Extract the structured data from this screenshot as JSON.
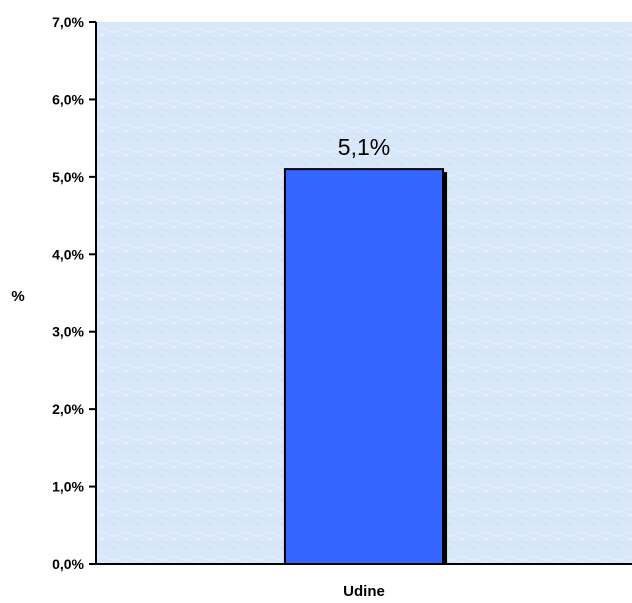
{
  "chart_data": {
    "type": "bar",
    "title": "",
    "xlabel": "",
    "ylabel": "%",
    "categories": [
      "Udine"
    ],
    "values": [
      5.1
    ],
    "data_labels": [
      "5,1%"
    ],
    "ylim": [
      0,
      7
    ],
    "yticks": [
      0,
      1,
      2,
      3,
      4,
      5,
      6,
      7
    ],
    "ytick_labels": [
      "0,0%",
      "1,0%",
      "2,0%",
      "3,0%",
      "4,0%",
      "5,0%",
      "6,0%",
      "7,0%"
    ],
    "grid": false,
    "legend": "none",
    "colors": {
      "bar": "#3366FF",
      "plot_background": "#D9E9FA",
      "axis": "#000000"
    }
  }
}
